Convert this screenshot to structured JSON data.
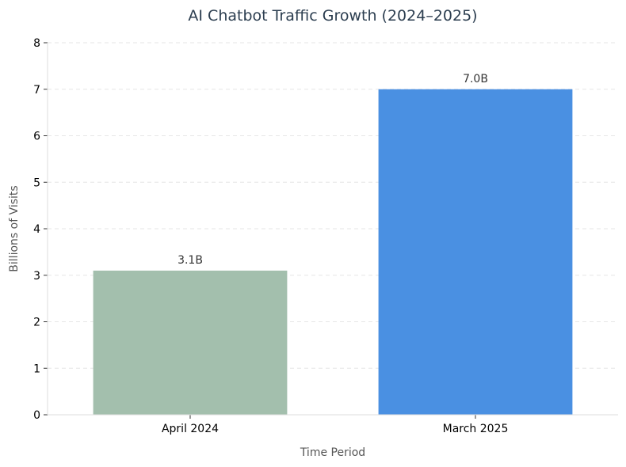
{
  "chart_data": {
    "type": "bar",
    "title": "AI Chatbot Traffic Growth (2024–2025)",
    "xlabel": "Time Period",
    "ylabel": "Billions of Visits",
    "categories": [
      "April 2024",
      "March 2025"
    ],
    "values": [
      3.1,
      7.0
    ],
    "data_labels": [
      "3.1B",
      "7.0B"
    ],
    "colors": [
      "#a3bfad",
      "#4a90e2"
    ],
    "ylim": [
      0,
      8
    ],
    "yticks": [
      0,
      1,
      2,
      3,
      4,
      5,
      6,
      7,
      8
    ],
    "grid": true
  }
}
